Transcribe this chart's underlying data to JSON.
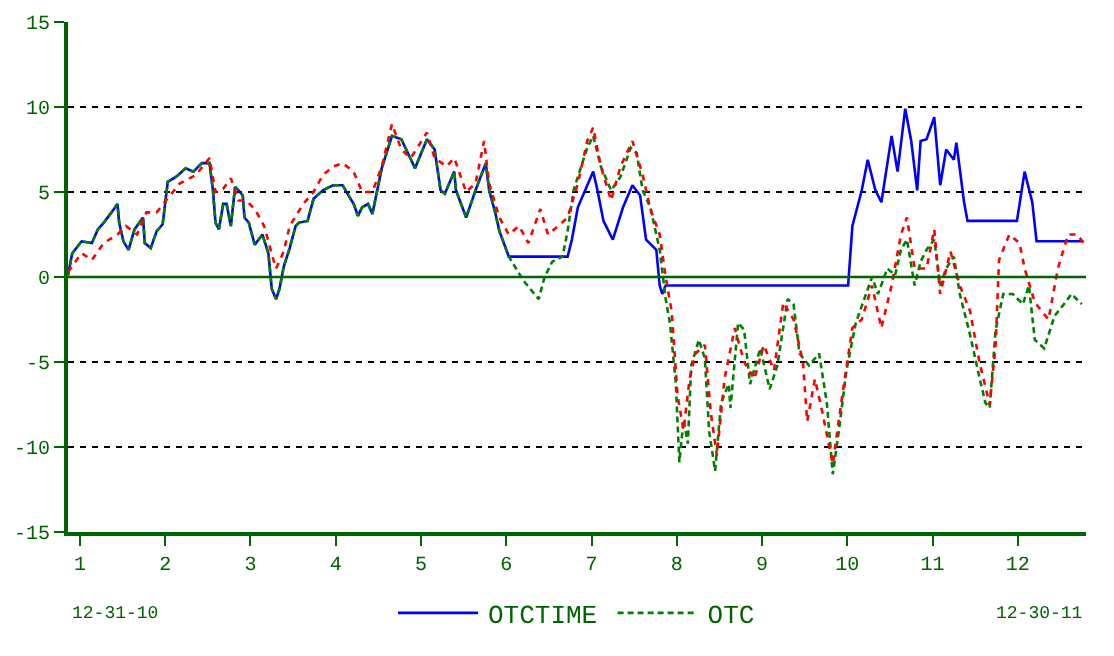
{
  "chart_data": {
    "type": "line",
    "xlim": [
      0.86,
      12.8
    ],
    "xticks": [
      1,
      2,
      3,
      4,
      5,
      6,
      7,
      8,
      9,
      10,
      11,
      12
    ],
    "ylim": [
      -15,
      15
    ],
    "yticks": [
      -15,
      -10,
      -5,
      0,
      5,
      10,
      15
    ],
    "grid": "y",
    "legend": "bottom",
    "marker": "none",
    "annotations": [
      "12-31-10",
      "12-30-11"
    ],
    "ref_lines": [
      {
        "axis": "y",
        "value": 0,
        "label": null,
        "color": "#006400",
        "line_style": "solid"
      }
    ],
    "series": [
      {
        "name": "OTCTIME",
        "color": "#0000ff",
        "line_style": "solid",
        "x": [
          0.86,
          0.91,
          1.02,
          1.14,
          1.21,
          1.28,
          1.37,
          1.44,
          1.46,
          1.51,
          1.57,
          1.64,
          1.74,
          1.76,
          1.83,
          1.9,
          1.97,
          2.03,
          2.13,
          2.24,
          2.33,
          2.43,
          2.52,
          2.56,
          2.59,
          2.63,
          2.68,
          2.72,
          2.77,
          2.82,
          2.86,
          2.91,
          2.93,
          2.98,
          3.05,
          3.14,
          3.21,
          3.25,
          3.3,
          3.34,
          3.39,
          3.46,
          3.53,
          3.57,
          3.67,
          3.74,
          3.85,
          3.97,
          4.08,
          4.15,
          4.21,
          4.26,
          4.31,
          4.38,
          4.43,
          4.54,
          4.66,
          4.77,
          4.93,
          5.07,
          5.16,
          5.23,
          5.28,
          5.39,
          5.41,
          5.53,
          5.64,
          5.76,
          5.8,
          5.87,
          5.92,
          6.03,
          6.72,
          6.77,
          6.84,
          7.02,
          7.07,
          7.14,
          7.25,
          7.37,
          7.48,
          7.57,
          7.64,
          7.76,
          7.8,
          7.83,
          7.87,
          10.01,
          10.06,
          10.17,
          10.24,
          10.33,
          10.4,
          10.52,
          10.59,
          10.68,
          10.75,
          10.82,
          10.86,
          10.93,
          11.02,
          11.09,
          11.16,
          11.25,
          11.28,
          11.37,
          11.41,
          11.99,
          12.08,
          12.17,
          12.22,
          12.77
        ],
        "values": [
          0.1,
          1.4,
          2.1,
          2.0,
          2.8,
          3.2,
          3.8,
          4.3,
          3.2,
          2.1,
          1.6,
          2.8,
          3.5,
          2.0,
          1.7,
          2.7,
          3.1,
          5.6,
          5.9,
          6.4,
          6.2,
          6.7,
          6.7,
          5.1,
          3.2,
          2.8,
          4.3,
          4.3,
          3.0,
          5.3,
          5.1,
          4.8,
          3.5,
          3.2,
          1.9,
          2.5,
          1.4,
          -0.7,
          -1.3,
          -0.7,
          0.6,
          1.7,
          3.0,
          3.2,
          3.3,
          4.6,
          5.1,
          5.4,
          5.4,
          4.8,
          4.3,
          3.6,
          4.1,
          4.3,
          3.7,
          6.4,
          8.3,
          8.1,
          6.4,
          8.1,
          7.5,
          5.1,
          4.9,
          6.2,
          5.1,
          3.5,
          5.1,
          6.7,
          5.1,
          3.8,
          2.7,
          1.2,
          1.2,
          2.2,
          4.1,
          6.2,
          5.1,
          3.3,
          2.2,
          4.1,
          5.4,
          4.8,
          2.2,
          1.6,
          -0.5,
          -1.0,
          -0.5,
          -0.5,
          3.0,
          5.1,
          6.9,
          5.1,
          4.4,
          8.3,
          6.2,
          9.9,
          8.0,
          5.1,
          8.0,
          8.1,
          9.4,
          5.4,
          7.5,
          6.9,
          7.9,
          4.4,
          3.3,
          3.3,
          6.2,
          4.4,
          2.1,
          2.1
        ]
      },
      {
        "name": "OTC",
        "color": "#008000",
        "line_style": "dashed",
        "x": [
          0.86,
          0.91,
          1.02,
          1.14,
          1.21,
          1.28,
          1.37,
          1.44,
          1.46,
          1.51,
          1.57,
          1.64,
          1.74,
          1.76,
          1.83,
          1.9,
          1.97,
          2.03,
          2.13,
          2.24,
          2.33,
          2.43,
          2.52,
          2.56,
          2.59,
          2.63,
          2.68,
          2.72,
          2.77,
          2.82,
          2.86,
          2.91,
          2.93,
          2.98,
          3.05,
          3.14,
          3.21,
          3.25,
          3.3,
          3.34,
          3.39,
          3.46,
          3.53,
          3.57,
          3.67,
          3.74,
          3.85,
          3.97,
          4.08,
          4.15,
          4.21,
          4.26,
          4.31,
          4.38,
          4.43,
          4.54,
          4.66,
          4.77,
          4.93,
          5.07,
          5.16,
          5.23,
          5.28,
          5.39,
          5.41,
          5.53,
          5.64,
          5.76,
          5.8,
          5.87,
          5.92,
          6.03,
          6.2,
          6.38,
          6.45,
          6.54,
          6.66,
          6.72,
          6.79,
          6.95,
          7.02,
          7.11,
          7.23,
          7.34,
          7.46,
          7.53,
          7.6,
          7.69,
          7.8,
          7.87,
          7.92,
          7.99,
          8.03,
          8.08,
          8.13,
          8.17,
          8.26,
          8.33,
          8.38,
          8.45,
          8.52,
          8.61,
          8.63,
          8.72,
          8.79,
          8.86,
          8.98,
          9.09,
          9.18,
          9.3,
          9.37,
          9.44,
          9.55,
          9.67,
          9.76,
          9.83,
          9.9,
          9.99,
          10.1,
          10.22,
          10.29,
          10.36,
          10.47,
          10.56,
          10.63,
          10.7,
          10.79,
          10.86,
          10.93,
          11.02,
          11.09,
          11.16,
          11.25,
          11.32,
          11.44,
          11.55,
          11.62,
          11.67,
          11.74,
          11.83,
          11.94,
          12.06,
          12.13,
          12.2,
          12.31,
          12.43,
          12.54,
          12.63,
          12.75
        ],
        "values": [
          0.1,
          1.4,
          2.1,
          2.0,
          2.8,
          3.2,
          3.8,
          4.3,
          3.2,
          2.1,
          1.6,
          2.8,
          3.5,
          2.0,
          1.7,
          2.7,
          3.1,
          5.6,
          5.9,
          6.4,
          6.2,
          6.7,
          6.7,
          5.1,
          3.2,
          2.8,
          4.3,
          4.3,
          3.0,
          5.3,
          5.1,
          4.8,
          3.5,
          3.2,
          1.9,
          2.5,
          1.4,
          -0.7,
          -1.3,
          -0.7,
          0.6,
          1.7,
          3.0,
          3.2,
          3.3,
          4.6,
          5.1,
          5.4,
          5.4,
          4.8,
          4.3,
          3.6,
          4.1,
          4.3,
          3.7,
          6.4,
          8.3,
          8.1,
          6.4,
          8.1,
          7.5,
          5.1,
          4.9,
          6.2,
          5.1,
          3.5,
          5.1,
          6.7,
          5.1,
          3.8,
          2.7,
          1.2,
          -0.2,
          -1.3,
          0.0,
          0.9,
          1.2,
          2.7,
          5.1,
          7.6,
          8.3,
          6.5,
          5.1,
          5.9,
          7.6,
          7.3,
          5.1,
          4.1,
          1.6,
          -1.3,
          -2.7,
          -6.3,
          -10.9,
          -8.4,
          -9.8,
          -5.2,
          -3.7,
          -4.8,
          -9.1,
          -11.4,
          -7.4,
          -6.3,
          -7.7,
          -2.7,
          -3.1,
          -6.3,
          -4.2,
          -6.6,
          -5.2,
          -1.3,
          -1.6,
          -4.5,
          -5.2,
          -4.5,
          -7.4,
          -11.6,
          -9.1,
          -5.5,
          -2.7,
          -1.0,
          0.0,
          -1.0,
          0.5,
          0.1,
          1.6,
          2.2,
          -0.5,
          0.9,
          1.6,
          2.2,
          -0.5,
          0.5,
          1.2,
          -1.0,
          -3.4,
          -5.9,
          -7.4,
          -7.7,
          -3.1,
          -1.0,
          -1.0,
          -1.6,
          -0.5,
          -3.7,
          -4.2,
          -2.3,
          -1.6,
          -1.0,
          -1.6
        ]
      },
      {
        "color": "#ff0000",
        "line_style": "dotted",
        "x": [
          0.86,
          1.02,
          1.14,
          1.28,
          1.44,
          1.54,
          1.67,
          1.78,
          1.9,
          2.01,
          2.17,
          2.36,
          2.52,
          2.59,
          2.68,
          2.77,
          2.86,
          2.95,
          3.05,
          3.16,
          3.27,
          3.3,
          3.39,
          3.46,
          3.62,
          3.74,
          3.85,
          3.97,
          4.08,
          4.21,
          4.31,
          4.43,
          4.54,
          4.66,
          4.77,
          4.88,
          5.07,
          5.16,
          5.3,
          5.39,
          5.53,
          5.64,
          5.74,
          5.8,
          5.92,
          6.03,
          6.15,
          6.26,
          6.4,
          6.49,
          6.61,
          6.72,
          6.84,
          6.95,
          7.02,
          7.11,
          7.23,
          7.34,
          7.48,
          7.6,
          7.69,
          7.8,
          7.87,
          7.94,
          8.01,
          8.08,
          8.15,
          8.22,
          8.33,
          8.4,
          8.47,
          8.56,
          8.68,
          8.79,
          8.91,
          9.02,
          9.14,
          9.25,
          9.37,
          9.48,
          9.53,
          9.62,
          9.71,
          9.83,
          9.94,
          10.06,
          10.17,
          10.29,
          10.4,
          10.52,
          10.63,
          10.7,
          10.79,
          10.93,
          11.02,
          11.09,
          11.21,
          11.32,
          11.44,
          11.55,
          11.67,
          11.74,
          11.78,
          11.9,
          12.02,
          12.08,
          12.2,
          12.36,
          12.47,
          12.59,
          12.7,
          12.77
        ],
        "values": [
          0.3,
          1.4,
          1.0,
          2.0,
          2.5,
          3.0,
          2.5,
          3.8,
          3.8,
          4.5,
          5.5,
          6.0,
          7.0,
          5.0,
          5.2,
          5.8,
          4.5,
          4.5,
          4.0,
          3.0,
          1.0,
          0.5,
          1.5,
          3.0,
          4.3,
          5.0,
          6.0,
          6.5,
          6.7,
          6.2,
          5.0,
          5.0,
          6.5,
          9.0,
          7.5,
          7.0,
          8.5,
          7.0,
          6.5,
          7.0,
          5.0,
          5.5,
          8.0,
          5.5,
          3.5,
          2.5,
          3.0,
          2.0,
          4.0,
          2.5,
          3.0,
          3.5,
          5.5,
          8.0,
          8.8,
          6.5,
          4.5,
          6.5,
          8.0,
          6.0,
          4.0,
          2.5,
          0.0,
          -2.0,
          -7.0,
          -9.0,
          -6.0,
          -4.5,
          -4.0,
          -8.0,
          -10.5,
          -6.0,
          -3.0,
          -5.0,
          -6.0,
          -4.0,
          -5.5,
          -1.5,
          -2.5,
          -5.0,
          -8.5,
          -6.0,
          -8.0,
          -11.0,
          -7.0,
          -3.0,
          -2.5,
          -0.5,
          -3.0,
          -0.5,
          2.5,
          3.5,
          0.5,
          0.5,
          2.8,
          -1.0,
          1.5,
          -0.5,
          -2.0,
          -5.0,
          -7.5,
          -4.0,
          1.0,
          2.5,
          2.0,
          0.5,
          -1.5,
          -2.5,
          0.5,
          2.5,
          2.5,
          2.0
        ]
      }
    ]
  }
}
